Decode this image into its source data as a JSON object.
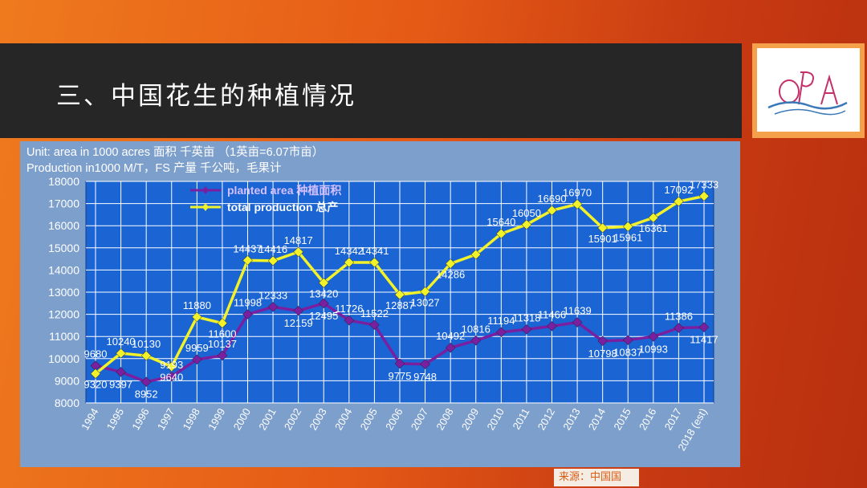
{
  "slide": {
    "title": "三、中国花生的种植情况",
    "logo_text": "OPA",
    "source": "来源：中国国"
  },
  "chart_data": {
    "type": "line",
    "header_line1": "Unit: area in  1000 acres   面积 千英亩 （1英亩=6.07市亩）",
    "header_line2": "Production in1000 M/T，FS  产量 千公吨，毛果计",
    "categories": [
      "1994",
      "1995",
      "1996",
      "1997",
      "1998",
      "1999",
      "2000",
      "2001",
      "2002",
      "2003",
      "2004",
      "2005",
      "2006",
      "2007",
      "2008",
      "2009",
      "2010",
      "2011",
      "2012",
      "2013",
      "2014",
      "2015",
      "2016",
      "2017",
      "2018 (est)"
    ],
    "ylim": [
      8000,
      18000
    ],
    "yticks": [
      8000,
      9000,
      10000,
      11000,
      12000,
      13000,
      14000,
      15000,
      16000,
      17000,
      18000
    ],
    "grid": true,
    "legend_position": "top-left",
    "series": [
      {
        "name": "planted area 种植面积",
        "color": "#7a1fa0",
        "values": [
          9680,
          9397,
          8952,
          9193,
          9959,
          10137,
          11998,
          12333,
          12159,
          12495,
          11726,
          11522,
          9775,
          9748,
          10492,
          10816,
          11194,
          11318,
          11466,
          11639,
          10798,
          10837,
          10993,
          11386,
          11417
        ],
        "labels": [
          "9680",
          "9397",
          "8952",
          "9193",
          "9959",
          "10137",
          "11998",
          "12333",
          "12159",
          "12495",
          "11726",
          "11522",
          "9775",
          "9748",
          "10492",
          "10816",
          "11194",
          "11318",
          "11466",
          "11639",
          "10798",
          "10837",
          "10993",
          "11386",
          "11417"
        ]
      },
      {
        "name": "total production 总产",
        "color": "#f2f22a",
        "values": [
          9320,
          10240,
          10130,
          9640,
          11880,
          11600,
          14437,
          14416,
          14817,
          13420,
          14342,
          14341,
          12887,
          13027,
          14286,
          14700,
          15640,
          16050,
          16690,
          16970,
          15901,
          15961,
          16361,
          17092,
          17333
        ],
        "labels": [
          "9320",
          "10240",
          "10130",
          "9640",
          "11880",
          "11600",
          "14437",
          "14416",
          "14817",
          "13420",
          "14342",
          "14341",
          "12887",
          "13027",
          "14286",
          "",
          "15640",
          "16050",
          "16690",
          "16970",
          "15901",
          "15961",
          "16361",
          "17092",
          "17333"
        ]
      }
    ]
  }
}
